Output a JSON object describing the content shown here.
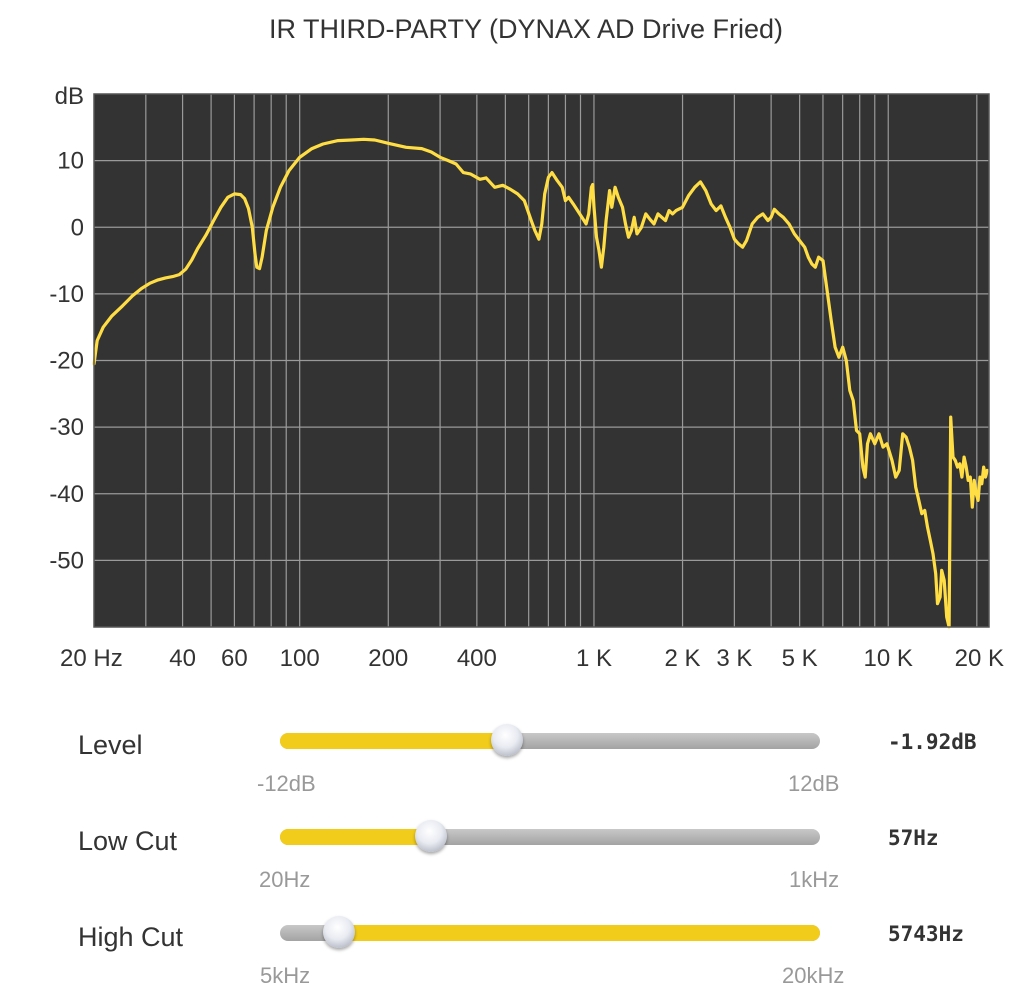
{
  "chart_data": {
    "type": "line",
    "title": "IR THIRD-PARTY (DYNAX AD Drive Fried)",
    "ylabel": "dB",
    "x_scale": "log",
    "xlim": [
      20,
      22000
    ],
    "ylim": [
      -60,
      20
    ],
    "y_ticks": [
      10,
      0,
      -10,
      -20,
      -30,
      -40,
      -50
    ],
    "x_ticks": [
      {
        "value": 20,
        "label": "20 Hz"
      },
      {
        "value": 40,
        "label": "40"
      },
      {
        "value": 60,
        "label": "60"
      },
      {
        "value": 100,
        "label": "100"
      },
      {
        "value": 200,
        "label": "200"
      },
      {
        "value": 400,
        "label": "400"
      },
      {
        "value": 1000,
        "label": "1 K"
      },
      {
        "value": 2000,
        "label": "2 K"
      },
      {
        "value": 3000,
        "label": "3 K"
      },
      {
        "value": 5000,
        "label": "5 K"
      },
      {
        "value": 10000,
        "label": "10 K"
      },
      {
        "value": 20000,
        "label": "20 K"
      }
    ],
    "grid": true,
    "background_color": "#333333",
    "line_color": "#ffdd44",
    "series": [
      {
        "points": [
          [
            20,
            -20.5
          ],
          [
            20.5,
            -17
          ],
          [
            21.5,
            -15
          ],
          [
            23,
            -13.3
          ],
          [
            25,
            -11.8
          ],
          [
            27,
            -10.3
          ],
          [
            29,
            -9.2
          ],
          [
            31,
            -8.4
          ],
          [
            33,
            -7.9
          ],
          [
            35,
            -7.6
          ],
          [
            37,
            -7.4
          ],
          [
            39,
            -7.1
          ],
          [
            41,
            -6.3
          ],
          [
            43,
            -4.9
          ],
          [
            45,
            -3.2
          ],
          [
            48,
            -1.2
          ],
          [
            51,
            1.0
          ],
          [
            54,
            3.0
          ],
          [
            57,
            4.5
          ],
          [
            60,
            5.0
          ],
          [
            63,
            4.9
          ],
          [
            65,
            4.3
          ],
          [
            67,
            2.8
          ],
          [
            69,
            0.0
          ],
          [
            70.5,
            -4.0
          ],
          [
            71.5,
            -6.0
          ],
          [
            73,
            -6.2
          ],
          [
            74.5,
            -4.5
          ],
          [
            77,
            -0.5
          ],
          [
            81,
            3.0
          ],
          [
            86,
            6.0
          ],
          [
            92,
            8.5
          ],
          [
            100,
            10.5
          ],
          [
            110,
            11.8
          ],
          [
            120,
            12.5
          ],
          [
            135,
            13.0
          ],
          [
            150,
            13.1
          ],
          [
            165,
            13.2
          ],
          [
            180,
            13.1
          ],
          [
            200,
            12.6
          ],
          [
            230,
            12.0
          ],
          [
            260,
            11.8
          ],
          [
            280,
            11.3
          ],
          [
            300,
            10.5
          ],
          [
            320,
            10.0
          ],
          [
            340,
            9.5
          ],
          [
            360,
            8.2
          ],
          [
            380,
            8.0
          ],
          [
            410,
            7.2
          ],
          [
            430,
            7.4
          ],
          [
            460,
            6.0
          ],
          [
            490,
            6.3
          ],
          [
            520,
            5.7
          ],
          [
            550,
            5.0
          ],
          [
            580,
            4.0
          ],
          [
            610,
            1.2
          ],
          [
            630,
            -0.5
          ],
          [
            650,
            -1.8
          ],
          [
            665,
            0.5
          ],
          [
            680,
            5.0
          ],
          [
            700,
            7.5
          ],
          [
            720,
            8.2
          ],
          [
            750,
            7.0
          ],
          [
            780,
            6.0
          ],
          [
            800,
            4.0
          ],
          [
            820,
            4.5
          ],
          [
            850,
            3.5
          ],
          [
            880,
            2.5
          ],
          [
            910,
            1.5
          ],
          [
            940,
            0.5
          ],
          [
            960,
            2.0
          ],
          [
            980,
            6.0
          ],
          [
            990,
            6.4
          ],
          [
            1000,
            3.0
          ],
          [
            1020,
            -1.5
          ],
          [
            1040,
            -3.5
          ],
          [
            1060,
            -6.0
          ],
          [
            1080,
            -3.0
          ],
          [
            1100,
            1.0
          ],
          [
            1130,
            5.5
          ],
          [
            1150,
            3.0
          ],
          [
            1180,
            6.0
          ],
          [
            1210,
            4.5
          ],
          [
            1250,
            3.0
          ],
          [
            1280,
            0.5
          ],
          [
            1310,
            -1.5
          ],
          [
            1340,
            -0.5
          ],
          [
            1370,
            1.5
          ],
          [
            1400,
            -1.0
          ],
          [
            1450,
            0.0
          ],
          [
            1500,
            2.0
          ],
          [
            1550,
            1.2
          ],
          [
            1600,
            0.5
          ],
          [
            1650,
            2.0
          ],
          [
            1700,
            1.5
          ],
          [
            1750,
            1.0
          ],
          [
            1800,
            2.5
          ],
          [
            1850,
            2.0
          ],
          [
            1900,
            2.5
          ],
          [
            2000,
            3.0
          ],
          [
            2100,
            4.8
          ],
          [
            2200,
            6.0
          ],
          [
            2300,
            6.8
          ],
          [
            2400,
            5.5
          ],
          [
            2500,
            3.5
          ],
          [
            2600,
            2.5
          ],
          [
            2700,
            3.2
          ],
          [
            2800,
            1.5
          ],
          [
            2900,
            0.0
          ],
          [
            3000,
            -1.8
          ],
          [
            3100,
            -2.5
          ],
          [
            3200,
            -3.0
          ],
          [
            3300,
            -2.0
          ],
          [
            3450,
            0.5
          ],
          [
            3600,
            1.5
          ],
          [
            3750,
            2.0
          ],
          [
            3900,
            1.0
          ],
          [
            4000,
            1.5
          ],
          [
            4100,
            2.7
          ],
          [
            4250,
            2.0
          ],
          [
            4400,
            1.5
          ],
          [
            4600,
            0.5
          ],
          [
            4800,
            -1.0
          ],
          [
            5000,
            -2.0
          ],
          [
            5200,
            -3.0
          ],
          [
            5350,
            -4.5
          ],
          [
            5500,
            -5.5
          ],
          [
            5650,
            -6.0
          ],
          [
            5800,
            -4.5
          ],
          [
            6000,
            -5.0
          ],
          [
            6200,
            -9.5
          ],
          [
            6400,
            -14.0
          ],
          [
            6600,
            -18.0
          ],
          [
            6800,
            -19.5
          ],
          [
            7000,
            -18.0
          ],
          [
            7200,
            -20.0
          ],
          [
            7400,
            -24.5
          ],
          [
            7600,
            -26.0
          ],
          [
            7800,
            -30.5
          ],
          [
            8000,
            -31.0
          ],
          [
            8200,
            -36.0
          ],
          [
            8350,
            -37.5
          ],
          [
            8500,
            -32.5
          ],
          [
            8700,
            -31.0
          ],
          [
            9000,
            -32.5
          ],
          [
            9300,
            -31.0
          ],
          [
            9600,
            -33.0
          ],
          [
            9900,
            -32.5
          ],
          [
            10300,
            -35.0
          ],
          [
            10600,
            -37.5
          ],
          [
            10900,
            -36.5
          ],
          [
            11200,
            -31.0
          ],
          [
            11500,
            -31.5
          ],
          [
            11800,
            -33.0
          ],
          [
            12100,
            -35.0
          ],
          [
            12400,
            -39.0
          ],
          [
            12700,
            -41.0
          ],
          [
            13000,
            -43.0
          ],
          [
            13300,
            -42.5
          ],
          [
            13600,
            -45.0
          ],
          [
            13900,
            -47.0
          ],
          [
            14200,
            -49.0
          ],
          [
            14500,
            -52.0
          ],
          [
            14700,
            -56.5
          ],
          [
            15000,
            -55.5
          ],
          [
            15200,
            -51.5
          ],
          [
            15500,
            -53.0
          ],
          [
            15800,
            -58.5
          ],
          [
            16100,
            -60.0
          ],
          [
            16300,
            -28.5
          ],
          [
            16600,
            -34.5
          ],
          [
            16900,
            -35.0
          ],
          [
            17200,
            -36.0
          ],
          [
            17500,
            -35.5
          ],
          [
            17800,
            -37.5
          ],
          [
            18100,
            -34.5
          ],
          [
            18400,
            -36.0
          ],
          [
            18700,
            -38.0
          ],
          [
            19000,
            -37.5
          ],
          [
            19300,
            -42.0
          ],
          [
            19600,
            -38.0
          ],
          [
            19900,
            -40.0
          ],
          [
            20200,
            -41.0
          ],
          [
            20500,
            -37.5
          ],
          [
            20800,
            -38.5
          ],
          [
            21100,
            -36.0
          ],
          [
            21400,
            -37.5
          ],
          [
            21700,
            -36.5
          ]
        ]
      }
    ]
  },
  "controls": {
    "level": {
      "label": "Level",
      "min_label": "-12dB",
      "max_label": "12dB",
      "value_text": "-1.92dB",
      "min": -12,
      "max": 12,
      "value": -1.92,
      "fill": "left"
    },
    "low_cut": {
      "label": "Low Cut",
      "min_label": "20Hz",
      "max_label": "1kHz",
      "value_text": "57Hz",
      "position": 0.28,
      "fill": "left"
    },
    "high_cut": {
      "label": "High Cut",
      "min_label": "5kHz",
      "max_label": "20kHz",
      "value_text": "5743Hz",
      "position": 0.11,
      "fill": "right"
    }
  },
  "colors": {
    "accent": "#f2cc1a",
    "track": "#b0b0b0",
    "plot_background": "#333333",
    "grid": "#9a9a9a",
    "curve": "#ffdd44"
  }
}
